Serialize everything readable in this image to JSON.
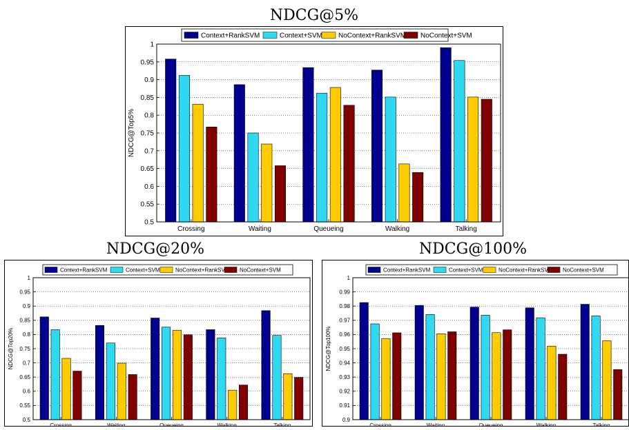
{
  "legend": [
    "Context+RankSVM",
    "Context+SVM",
    "NoContext+RankSVM",
    "NoContext+SVM"
  ],
  "colors": [
    "#00008f",
    "#2fd9f2",
    "#ffcc00",
    "#800000"
  ],
  "chart_data": [
    {
      "type": "bar",
      "title": "NDCG@5%",
      "ylabel": "NDCG@Top5%",
      "categories": [
        "Crossing",
        "Waiting",
        "Queueing",
        "Walking",
        "Talking"
      ],
      "ylim": [
        0.5,
        1
      ],
      "yticks": [
        0.5,
        0.55,
        0.6,
        0.65,
        0.7,
        0.75,
        0.8,
        0.85,
        0.9,
        0.95,
        1
      ],
      "yticklabels": [
        "0.5",
        "0.55",
        "0.6",
        "0.65",
        "0.7",
        "0.75",
        "0.8",
        "0.85",
        "0.9",
        "0.95",
        "1"
      ],
      "grid": true,
      "legend_position": "top",
      "series": [
        {
          "name": "Context+RankSVM",
          "values": [
            0.958,
            0.886,
            0.934,
            0.927,
            0.99
          ]
        },
        {
          "name": "Context+SVM",
          "values": [
            0.912,
            0.75,
            0.862,
            0.851,
            0.954
          ]
        },
        {
          "name": "NoContext+RankSVM",
          "values": [
            0.831,
            0.719,
            0.878,
            0.663,
            0.851
          ]
        },
        {
          "name": "NoContext+SVM",
          "values": [
            0.767,
            0.658,
            0.828,
            0.639,
            0.845
          ]
        }
      ]
    },
    {
      "type": "bar",
      "title": "NDCG@20%",
      "ylabel": "NDCG@Top20%",
      "categories": [
        "Crossing",
        "Waiting",
        "Queueing",
        "Walking",
        "Talking"
      ],
      "ylim": [
        0.5,
        1
      ],
      "yticks": [
        0.5,
        0.55,
        0.6,
        0.65,
        0.7,
        0.75,
        0.8,
        0.85,
        0.9,
        0.95,
        1
      ],
      "yticklabels": [
        "0.5",
        "0.55",
        "0.6",
        "0.65",
        "0.7",
        "0.75",
        "0.8",
        "0.85",
        "0.9",
        "0.95",
        "1"
      ],
      "grid": true,
      "legend_position": "top",
      "series": [
        {
          "name": "Context+RankSVM",
          "values": [
            0.862,
            0.832,
            0.858,
            0.817,
            0.884
          ]
        },
        {
          "name": "Context+SVM",
          "values": [
            0.817,
            0.77,
            0.826,
            0.788,
            0.797
          ]
        },
        {
          "name": "NoContext+RankSVM",
          "values": [
            0.716,
            0.699,
            0.815,
            0.604,
            0.662
          ]
        },
        {
          "name": "NoContext+SVM",
          "values": [
            0.671,
            0.659,
            0.799,
            0.622,
            0.649
          ]
        }
      ]
    },
    {
      "type": "bar",
      "title": "NDCG@100%",
      "ylabel": "NDCG@Top100%",
      "categories": [
        "Crossing",
        "Waiting",
        "Queueing",
        "Walking",
        "Talking"
      ],
      "ylim": [
        0.9,
        1
      ],
      "yticks": [
        0.9,
        0.91,
        0.92,
        0.93,
        0.94,
        0.95,
        0.96,
        0.97,
        0.98,
        0.99,
        1
      ],
      "yticklabels": [
        "0.9",
        "0.91",
        "0.92",
        "0.93",
        "0.94",
        "0.95",
        "0.96",
        "0.97",
        "0.98",
        "0.99",
        "1"
      ],
      "grid": true,
      "legend_position": "top",
      "series": [
        {
          "name": "Context+RankSVM",
          "values": [
            0.9825,
            0.9805,
            0.9793,
            0.9788,
            0.9813
          ]
        },
        {
          "name": "Context+SVM",
          "values": [
            0.9675,
            0.9741,
            0.9736,
            0.9718,
            0.9731
          ]
        },
        {
          "name": "NoContext+RankSVM",
          "values": [
            0.9572,
            0.9605,
            0.9613,
            0.9518,
            0.9556
          ]
        },
        {
          "name": "NoContext+SVM",
          "values": [
            0.9612,
            0.9619,
            0.9633,
            0.9461,
            0.9353
          ]
        }
      ]
    }
  ]
}
